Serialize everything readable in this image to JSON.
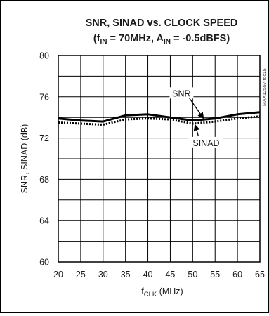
{
  "chart_data": {
    "type": "line",
    "title_line1": "SNR, SINAD vs. CLOCK SPEED",
    "title_line2": {
      "open": "(f",
      "fin_sub": "IN",
      "fin_value": " = 70MHz, A",
      "ain_sub": "IN",
      "ain_value": " = -0.5dBFS)"
    },
    "xlabel": {
      "main": "f",
      "sub": "CLK",
      "unit": " (MHz)"
    },
    "ylabel": "SNR, SINAD (dB)",
    "side_note": "MAX12557 toc15",
    "xlim": [
      20,
      65
    ],
    "ylim": [
      60,
      80
    ],
    "x_ticks": [
      "20",
      "25",
      "30",
      "35",
      "40",
      "45",
      "50",
      "55",
      "60",
      "65"
    ],
    "y_ticks": [
      "60",
      "64",
      "68",
      "72",
      "76",
      "80"
    ],
    "x_grid_step": 5,
    "y_grid_step": 2,
    "grid": true,
    "series": [
      {
        "name": "SNR",
        "style": "solid",
        "color": "#000000",
        "x": [
          20,
          25,
          30,
          35,
          40,
          45,
          50,
          55,
          60,
          65
        ],
        "y": [
          73.9,
          73.7,
          73.6,
          74.2,
          74.3,
          74.0,
          73.7,
          73.9,
          74.3,
          74.5
        ]
      },
      {
        "name": "SINAD",
        "style": "dotted",
        "color": "#000000",
        "x": [
          20,
          25,
          30,
          35,
          40,
          45,
          50,
          55,
          60,
          65
        ],
        "y": [
          73.5,
          73.4,
          73.3,
          73.8,
          73.9,
          73.8,
          73.4,
          73.6,
          73.9,
          74.1
        ]
      }
    ],
    "annotations": [
      {
        "text": "SNR",
        "series": "SNR",
        "target": {
          "x": 52.5,
          "y": 73.85
        },
        "label_at": {
          "x": 47.5,
          "y": 76.1
        }
      },
      {
        "text": "SINAD",
        "series": "SINAD",
        "target": {
          "x": 50.5,
          "y": 73.35
        },
        "label_at": {
          "x": 53,
          "y": 71.3
        }
      }
    ]
  }
}
